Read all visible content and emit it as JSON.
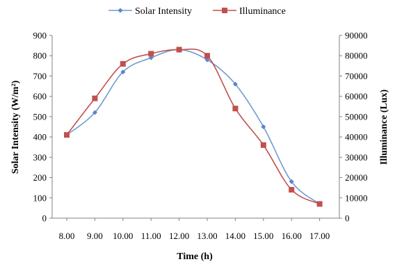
{
  "chart_data": {
    "type": "line",
    "categories": [
      "8.00",
      "9.00",
      "10.00",
      "11.00",
      "12.00",
      "13.00",
      "14.00",
      "15.00",
      "16.00",
      "17.00"
    ],
    "series": [
      {
        "name": "Solar Intensity",
        "axis": "left",
        "color": "#6F9BD1",
        "marker": "diamond",
        "values": [
          410,
          520,
          720,
          790,
          830,
          780,
          660,
          450,
          180,
          70
        ]
      },
      {
        "name": "Illuminance",
        "axis": "right",
        "color": "#C0504D",
        "marker": "square",
        "values": [
          41000,
          59000,
          76000,
          81000,
          83000,
          80000,
          54000,
          36000,
          14000,
          7000
        ]
      }
    ],
    "xlabel": "Time (h)",
    "ylabel": "Solar Intensity (W/m²)",
    "y2label": "Illuminance (Lux)",
    "ylim": [
      0,
      900
    ],
    "y2lim": [
      0,
      90000
    ],
    "yticks": [
      "0",
      "100",
      "200",
      "300",
      "400",
      "500",
      "600",
      "700",
      "800",
      "900"
    ],
    "y2ticks": [
      "0",
      "10000",
      "20000",
      "30000",
      "40000",
      "50000",
      "60000",
      "70000",
      "80000",
      "90000"
    ],
    "grid": false,
    "legend": "top"
  }
}
